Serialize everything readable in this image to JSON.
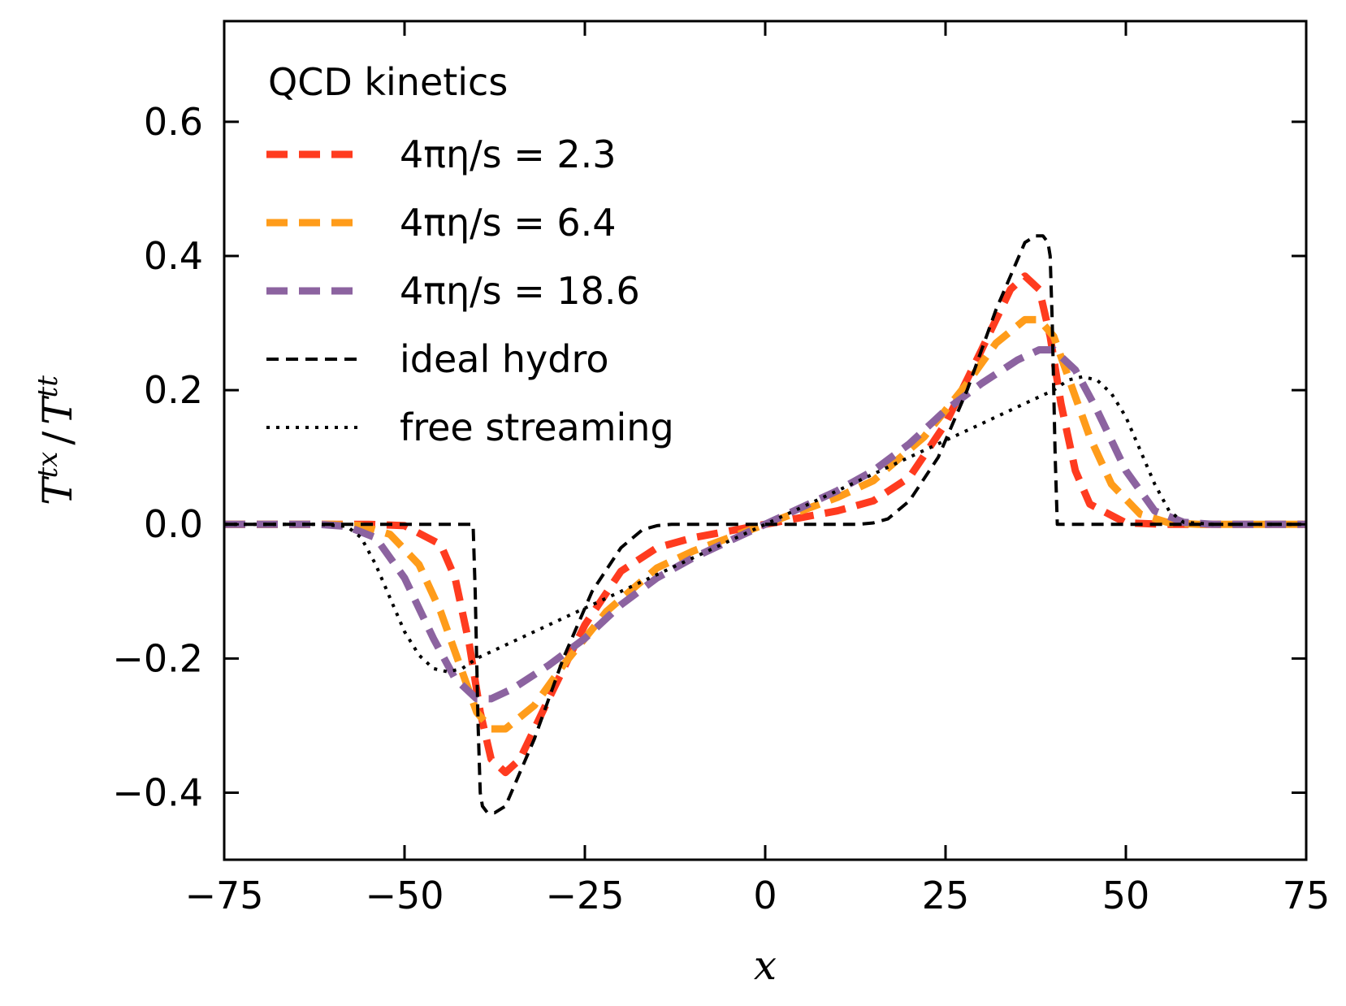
{
  "chart_data": {
    "type": "line",
    "title": "",
    "xlabel": "x",
    "ylabel": "T^{tx} / T^{tt}",
    "ylabel_parts": {
      "num_base": "T",
      "num_sup": "tx",
      "slash": "/",
      "den_base": "T",
      "den_sup": "tt"
    },
    "xlim": [
      -75,
      75
    ],
    "ylim": [
      -0.5,
      0.75
    ],
    "xticks": [
      -75,
      -50,
      -25,
      0,
      25,
      50,
      75
    ],
    "xtick_labels": [
      "−75",
      "−50",
      "−25",
      "0",
      "25",
      "50",
      "75"
    ],
    "yticks": [
      -0.4,
      -0.2,
      0.0,
      0.2,
      0.4,
      0.6
    ],
    "ytick_labels": [
      "−0.4",
      "−0.2",
      "0.0",
      "0.2",
      "0.4",
      "0.6"
    ],
    "grid": false,
    "legend": {
      "position": "top-left",
      "title": "QCD kinetics"
    },
    "series": [
      {
        "name": "4πη/s = 2.3",
        "color": "#ff3b1f",
        "style": "dashed-thick",
        "x": [
          -75,
          -60,
          -55,
          -50,
          -45,
          -43,
          -41,
          -39.5,
          -38,
          -36,
          -34,
          -30,
          -25,
          -20,
          -15,
          -10,
          -5,
          0,
          5,
          10,
          15,
          20,
          25,
          30,
          34,
          36,
          38,
          39.5,
          41,
          43,
          45,
          50,
          55,
          60,
          75
        ],
        "y": [
          0,
          0,
          0,
          -0.002,
          -0.03,
          -0.08,
          -0.18,
          -0.28,
          -0.35,
          -0.37,
          -0.35,
          -0.26,
          -0.15,
          -0.07,
          -0.035,
          -0.02,
          -0.01,
          0,
          0.01,
          0.02,
          0.035,
          0.07,
          0.15,
          0.26,
          0.35,
          0.37,
          0.35,
          0.28,
          0.18,
          0.08,
          0.03,
          0.002,
          0,
          0,
          0
        ]
      },
      {
        "name": "4πη/s = 6.4",
        "color": "#ff9c1a",
        "style": "dashed-thick",
        "x": [
          -75,
          -60,
          -56,
          -52,
          -48,
          -45,
          -42,
          -40,
          -38,
          -36,
          -32,
          -28,
          -22,
          -15,
          -10,
          -5,
          0,
          5,
          10,
          15,
          22,
          28,
          32,
          36,
          38,
          40,
          42,
          45,
          48,
          52,
          56,
          60,
          75
        ],
        "y": [
          0,
          0,
          -0.002,
          -0.015,
          -0.06,
          -0.13,
          -0.22,
          -0.28,
          -0.305,
          -0.305,
          -0.27,
          -0.21,
          -0.13,
          -0.065,
          -0.04,
          -0.02,
          0,
          0.02,
          0.04,
          0.065,
          0.13,
          0.21,
          0.27,
          0.305,
          0.305,
          0.28,
          0.22,
          0.13,
          0.06,
          0.015,
          0.002,
          0,
          0
        ]
      },
      {
        "name": "4πη/s = 18.6",
        "color": "#8c63a0",
        "style": "dashed-thick",
        "x": [
          -75,
          -62,
          -58,
          -54,
          -50,
          -46,
          -43,
          -40,
          -38,
          -35,
          -30,
          -25,
          -20,
          -15,
          -10,
          -5,
          0,
          5,
          10,
          15,
          20,
          25,
          30,
          35,
          38,
          40,
          43,
          46,
          50,
          54,
          58,
          62,
          75
        ],
        "y": [
          0,
          0,
          -0.003,
          -0.02,
          -0.08,
          -0.17,
          -0.23,
          -0.26,
          -0.26,
          -0.245,
          -0.21,
          -0.17,
          -0.12,
          -0.08,
          -0.05,
          -0.025,
          0,
          0.025,
          0.05,
          0.08,
          0.12,
          0.17,
          0.21,
          0.245,
          0.26,
          0.26,
          0.23,
          0.17,
          0.08,
          0.02,
          0.003,
          0,
          0
        ]
      },
      {
        "name": "ideal hydro",
        "color": "#000000",
        "style": "dashed-thin",
        "x": [
          -75,
          -40.5,
          -40.2,
          -39.8,
          -39.5,
          -39.2,
          -38.5,
          -37.5,
          -36,
          -32,
          -28,
          -24,
          -20,
          -17,
          -15,
          -13,
          -10,
          -5,
          0,
          5,
          10,
          13,
          15,
          17,
          20,
          24,
          28,
          32,
          36,
          37.5,
          38.5,
          39.2,
          39.5,
          39.8,
          40.2,
          40.5,
          75
        ],
        "y": [
          0,
          0,
          -0.1,
          -0.3,
          -0.4,
          -0.42,
          -0.43,
          -0.43,
          -0.42,
          -0.32,
          -0.2,
          -0.1,
          -0.035,
          -0.008,
          -0.002,
          0,
          0,
          0,
          0,
          0,
          0,
          0,
          0.002,
          0.008,
          0.035,
          0.1,
          0.2,
          0.32,
          0.42,
          0.43,
          0.43,
          0.42,
          0.4,
          0.3,
          0.1,
          0,
          0
        ]
      },
      {
        "name": "free streaming",
        "color": "#000000",
        "style": "dotted",
        "x": [
          -75,
          -62,
          -58,
          -56,
          -54,
          -52,
          -50,
          -48,
          -46,
          -44,
          -42,
          -40,
          -35,
          -30,
          -25,
          -20,
          -15,
          -10,
          -5,
          0,
          5,
          10,
          15,
          20,
          25,
          30,
          35,
          40,
          42,
          44,
          46,
          48,
          50,
          52,
          54,
          56,
          58,
          62,
          75
        ],
        "y": [
          0,
          0,
          -0.003,
          -0.02,
          -0.06,
          -0.11,
          -0.16,
          -0.195,
          -0.215,
          -0.22,
          -0.215,
          -0.2,
          -0.175,
          -0.15,
          -0.125,
          -0.1,
          -0.075,
          -0.05,
          -0.025,
          0,
          0.025,
          0.05,
          0.075,
          0.1,
          0.125,
          0.15,
          0.175,
          0.2,
          0.215,
          0.22,
          0.215,
          0.195,
          0.16,
          0.11,
          0.06,
          0.02,
          0.003,
          0,
          0
        ]
      }
    ]
  }
}
